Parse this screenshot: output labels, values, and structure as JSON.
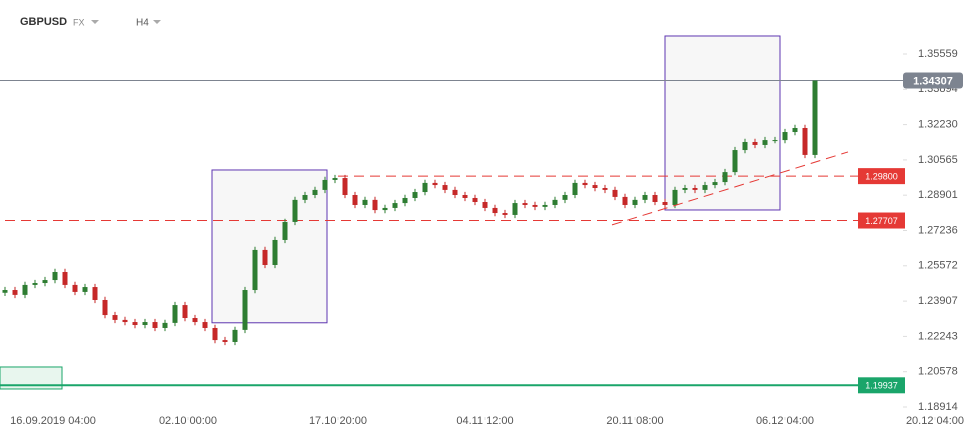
{
  "header": {
    "symbol": "GBPUSD",
    "market": "FX",
    "interval": "H4"
  },
  "chart_data": {
    "type": "candlestick",
    "xlim": [
      0,
      94
    ],
    "ylim": [
      1.18301,
      1.38105
    ],
    "xticks": [
      {
        "value": 5.3,
        "label": "16.09.2019 04:00"
      },
      {
        "value": 18.8,
        "label": "02.10 00:00"
      },
      {
        "value": 33.8,
        "label": "17.10 20:00"
      },
      {
        "value": 48.5,
        "label": "04.11 12:00"
      },
      {
        "value": 63.5,
        "label": "20.11 08:00"
      },
      {
        "value": 78.5,
        "label": "06.12 04:00"
      },
      {
        "value": 93.5,
        "label": "20.12 04:00"
      }
    ],
    "yticks": [
      1.35559,
      1.33894,
      {
        "value": 1.3223,
        "label": "1.32230"
      },
      1.30565,
      1.28901,
      1.27236,
      1.25572,
      1.23907,
      1.22243,
      1.20578,
      1.18914
    ],
    "up_color": "#2e7d32",
    "down_color": "#c62828",
    "x": [
      0.5,
      1.5,
      2.5,
      3.5,
      4.5,
      5.5,
      6.5,
      7.5,
      8.5,
      9.5,
      10.5,
      11.5,
      12.5,
      13.5,
      14.5,
      15.5,
      16.5,
      17.5,
      18.5,
      19.5,
      20.5,
      21.5,
      22.5,
      23.5,
      24.5,
      25.5,
      26.5,
      27.5,
      28.5,
      29.5,
      30.5,
      31.5,
      32.5,
      33.5,
      34.5,
      35.5,
      36.5,
      37.5,
      38.5,
      39.5,
      40.5,
      41.5,
      42.5,
      43.5,
      44.5,
      45.5,
      46.5,
      47.5,
      48.5,
      49.5,
      50.5,
      51.5,
      52.5,
      53.5,
      54.5,
      55.5,
      56.5,
      57.5,
      58.5,
      59.5,
      60.5,
      61.5,
      62.5,
      63.5,
      64.5,
      65.5,
      66.5,
      67.5,
      68.5,
      69.5,
      70.5,
      71.5,
      72.5,
      73.5,
      74.5,
      75.5,
      76.5,
      77.5,
      78.5,
      79.5,
      80.5,
      81.5
    ],
    "open": [
      1.243,
      1.2443,
      1.242,
      1.2467,
      1.2476,
      1.249,
      1.2528,
      1.2467,
      1.2434,
      1.2457,
      1.2396,
      1.2325,
      1.2302,
      1.2292,
      1.2278,
      1.2292,
      1.2264,
      1.2288,
      1.2372,
      1.2311,
      1.2292,
      1.2264,
      1.2207,
      1.2198,
      1.2255,
      1.2443,
      1.2632,
      1.2561,
      1.2679,
      1.2764,
      1.2868,
      1.2891,
      1.2915,
      1.2962,
      1.2971,
      1.2891,
      1.2844,
      1.2868,
      1.282,
      1.283,
      1.2853,
      1.2877,
      1.2905,
      1.2948,
      1.2938,
      1.2915,
      1.2891,
      1.2877,
      1.2858,
      1.283,
      1.2806,
      1.2797,
      1.2853,
      1.2844,
      1.2835,
      1.2844,
      1.2868,
      1.2891,
      1.2948,
      1.2938,
      1.2924,
      1.2915,
      1.2882,
      1.2844,
      1.2868,
      1.2891,
      1.2858,
      1.2844,
      1.2915,
      1.2924,
      1.2915,
      1.2938,
      1.2952,
      1.2999,
      1.3103,
      1.3141,
      1.3127,
      1.315,
      1.315,
      1.3188,
      1.3207,
      1.308
    ],
    "high": [
      1.2458,
      1.2458,
      1.2482,
      1.2491,
      1.2505,
      1.2543,
      1.2543,
      1.2482,
      1.2472,
      1.2472,
      1.2411,
      1.234,
      1.2317,
      1.2307,
      1.2307,
      1.2307,
      1.2303,
      1.2387,
      1.2387,
      1.2326,
      1.2307,
      1.2279,
      1.2222,
      1.227,
      1.2458,
      1.2647,
      1.2647,
      1.2694,
      1.2779,
      1.2883,
      1.2906,
      1.293,
      1.2977,
      1.2986,
      1.2986,
      1.2906,
      1.2883,
      1.2883,
      1.2845,
      1.2868,
      1.2892,
      1.292,
      1.2963,
      1.2963,
      1.2953,
      1.293,
      1.2906,
      1.2892,
      1.2873,
      1.2845,
      1.2821,
      1.2868,
      1.2868,
      1.2859,
      1.2859,
      1.2883,
      1.2906,
      1.2963,
      1.2963,
      1.2953,
      1.2939,
      1.293,
      1.2897,
      1.2883,
      1.2906,
      1.2906,
      1.2873,
      1.293,
      1.2939,
      1.2939,
      1.2953,
      1.2967,
      1.3014,
      1.3118,
      1.3156,
      1.3156,
      1.3165,
      1.3165,
      1.3203,
      1.3222,
      1.3222,
      1.3431
    ],
    "low": [
      1.2415,
      1.2405,
      1.2405,
      1.2452,
      1.2461,
      1.2475,
      1.2452,
      1.2419,
      1.2419,
      1.2381,
      1.231,
      1.2287,
      1.2277,
      1.2263,
      1.2263,
      1.2249,
      1.2249,
      1.2273,
      1.2296,
      1.2277,
      1.2249,
      1.2192,
      1.2183,
      1.2183,
      1.224,
      1.2428,
      1.2546,
      1.2546,
      1.2664,
      1.2749,
      1.2853,
      1.2876,
      1.29,
      1.2947,
      1.2876,
      1.2829,
      1.2829,
      1.2805,
      1.2805,
      1.2815,
      1.2838,
      1.2862,
      1.289,
      1.2923,
      1.29,
      1.2876,
      1.2862,
      1.2843,
      1.2815,
      1.2791,
      1.2782,
      1.2782,
      1.2829,
      1.282,
      1.282,
      1.2829,
      1.2853,
      1.2876,
      1.2923,
      1.2909,
      1.29,
      1.2867,
      1.2829,
      1.2829,
      1.2853,
      1.2843,
      1.2829,
      1.2829,
      1.29,
      1.29,
      1.29,
      1.2923,
      1.2937,
      1.2984,
      1.3088,
      1.3112,
      1.3112,
      1.3135,
      1.3135,
      1.3173,
      1.3065,
      1.3065
    ],
    "close": [
      1.2443,
      1.242,
      1.2467,
      1.2476,
      1.249,
      1.2528,
      1.2467,
      1.2434,
      1.2457,
      1.2396,
      1.2325,
      1.2302,
      1.2292,
      1.2278,
      1.2292,
      1.2264,
      1.2288,
      1.2372,
      1.2311,
      1.2292,
      1.2264,
      1.2207,
      1.2198,
      1.2255,
      1.2443,
      1.2632,
      1.2561,
      1.2679,
      1.2764,
      1.2868,
      1.2891,
      1.2915,
      1.2962,
      1.2971,
      1.2891,
      1.2844,
      1.2868,
      1.282,
      1.283,
      1.2853,
      1.2877,
      1.2905,
      1.2948,
      1.2938,
      1.2915,
      1.2891,
      1.2877,
      1.2858,
      1.283,
      1.2806,
      1.2797,
      1.2853,
      1.2844,
      1.2835,
      1.2844,
      1.2868,
      1.2891,
      1.2948,
      1.2938,
      1.2924,
      1.2915,
      1.2882,
      1.2844,
      1.2868,
      1.2891,
      1.2858,
      1.2844,
      1.2915,
      1.2924,
      1.2915,
      1.2938,
      1.2952,
      1.2999,
      1.3103,
      1.3141,
      1.3127,
      1.315,
      1.315,
      1.3188,
      1.3207,
      1.308,
      1.3431
    ],
    "price_lines": [
      {
        "value": 1.34307,
        "color": "#7d8490",
        "style": "solid",
        "x_start": 0
      },
      {
        "value": 1.298,
        "label": "1.29800",
        "color": "#e53935",
        "style": "dashed",
        "x_start": 33.8
      },
      {
        "value": 1.27707,
        "color": "#e53935",
        "style": "dashed",
        "x_start": 0.5
      },
      {
        "value": 1.19937,
        "color": "#1aa56a",
        "style": "solid",
        "x_start": 0
      }
    ],
    "rectangles": [
      {
        "x": [
          21.2,
          32.7
        ],
        "y": [
          1.22885,
          1.3009
        ],
        "stroke": "#5e35b1",
        "fill": "#f7f7f7"
      },
      {
        "x": [
          66.5,
          78.0
        ],
        "y": [
          1.28204,
          1.36408
        ],
        "stroke": "#5e35b1",
        "fill": "#f7f7f7"
      },
      {
        "x": [
          0,
          6.2
        ],
        "y": [
          1.19764,
          1.20801
        ],
        "stroke": "#1aa56a",
        "fill": "#e8f6ee"
      }
    ],
    "trendline": {
      "x": [
        61.2,
        84.8
      ],
      "y": [
        1.275,
        1.3094
      ],
      "color": "#e53935"
    }
  }
}
